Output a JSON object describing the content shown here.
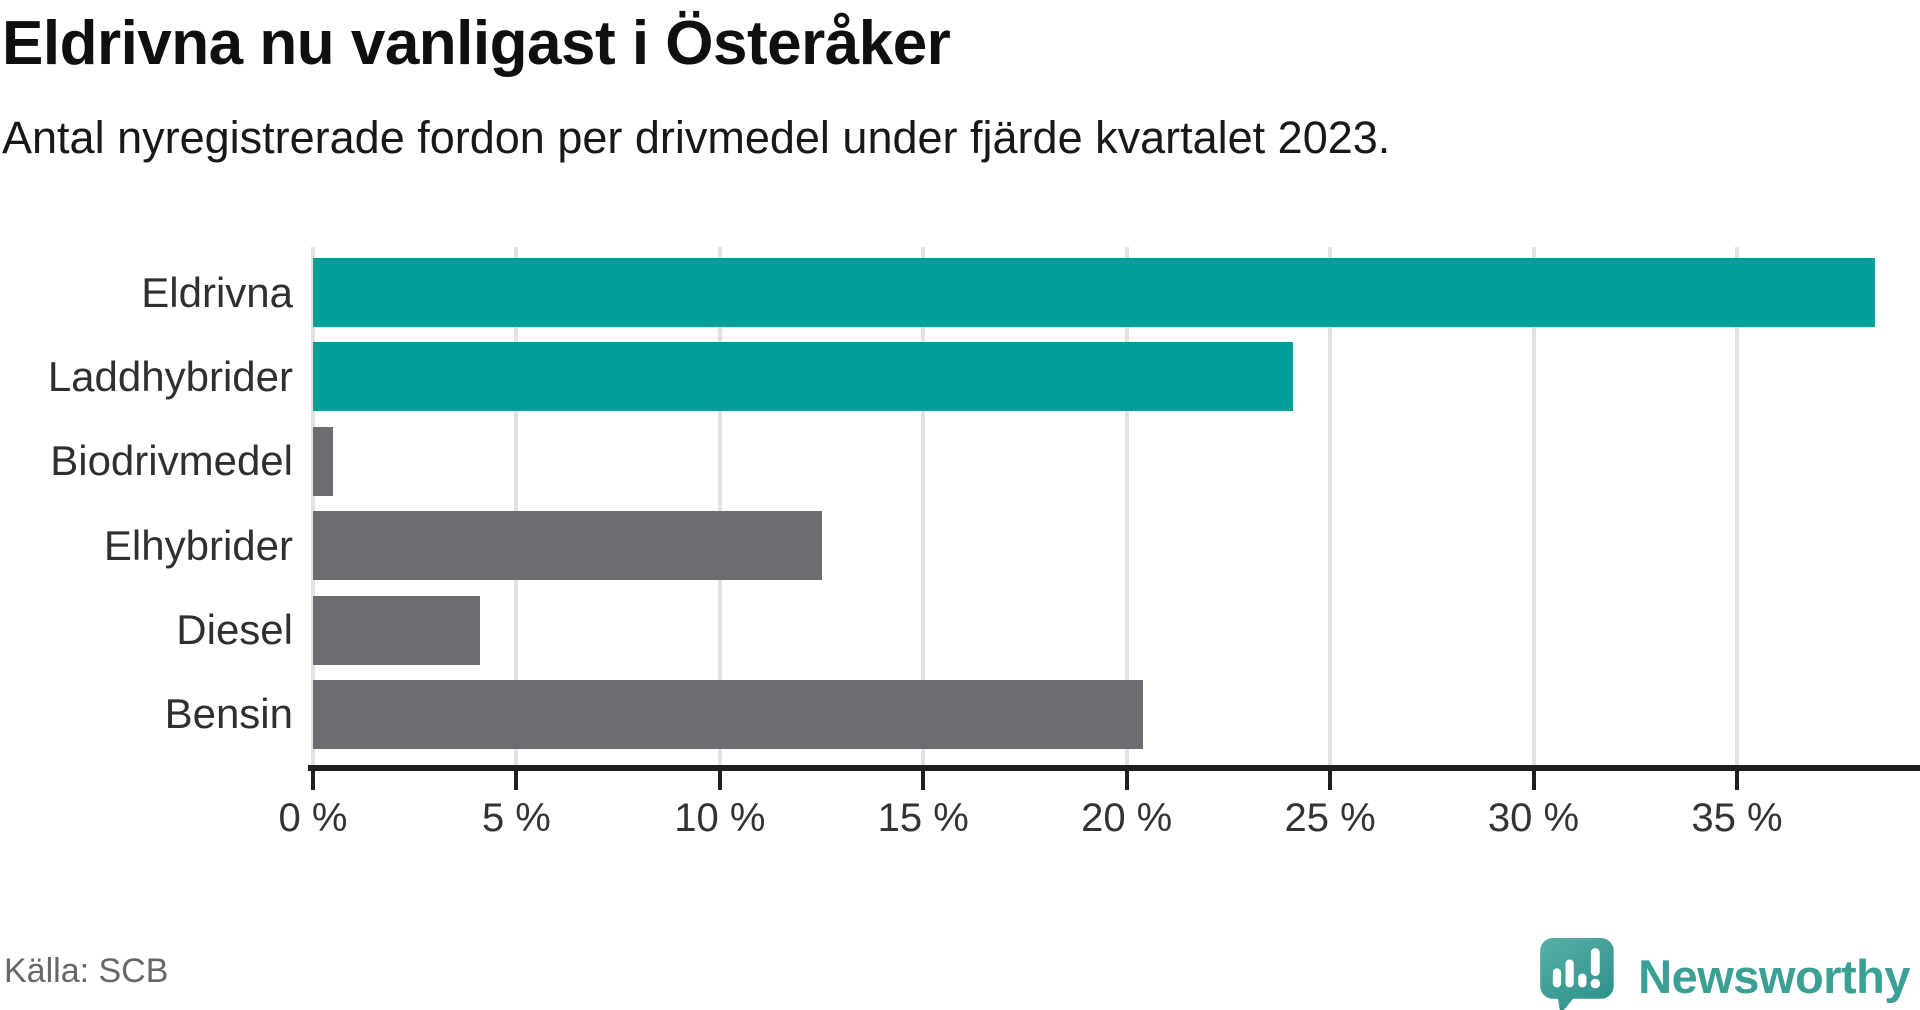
{
  "header": {
    "title": "Eldrivna nu vanligast i Österåker",
    "subtitle": "Antal nyregistrerade fordon per drivmedel under fjärde kvartalet 2023."
  },
  "footer": {
    "source": "Källa: SCB",
    "brand_name": "Newsworthy"
  },
  "colors": {
    "teal_bar": "#00a099",
    "gray_bar": "#6d6d71",
    "gridline": "#e2e2e2",
    "axis": "#1f1f1f",
    "title_text": "#0f0f0f",
    "label_text": "#2f2f2f",
    "source_text": "#66676d",
    "brand_teal": "#3aa094"
  },
  "chart_data": {
    "type": "bar",
    "orientation": "horizontal",
    "title": "Eldrivna nu vanligast i Österåker",
    "subtitle": "Antal nyregistrerade fordon per drivmedel under fjärde kvartalet 2023.",
    "xlabel": "",
    "ylabel": "",
    "unit": "%",
    "categories": [
      "Eldrivna",
      "Laddhybrider",
      "Biodrivmedel",
      "Elhybrider",
      "Diesel",
      "Bensin"
    ],
    "values": [
      38.4,
      24.1,
      0.5,
      12.5,
      4.1,
      20.4
    ],
    "bar_colors": [
      "#00a099",
      "#00a099",
      "#6d6d71",
      "#6d6d71",
      "#6d6d71",
      "#6d6d71"
    ],
    "x_tick_values": [
      0,
      5,
      10,
      15,
      20,
      25,
      30,
      35
    ],
    "x_tick_labels": [
      "0 %",
      "5 %",
      "10 %",
      "15 %",
      "20 %",
      "25 %",
      "30 %",
      "35 %"
    ],
    "xlim": [
      0,
      39.5
    ],
    "grid": true,
    "legend": false
  }
}
